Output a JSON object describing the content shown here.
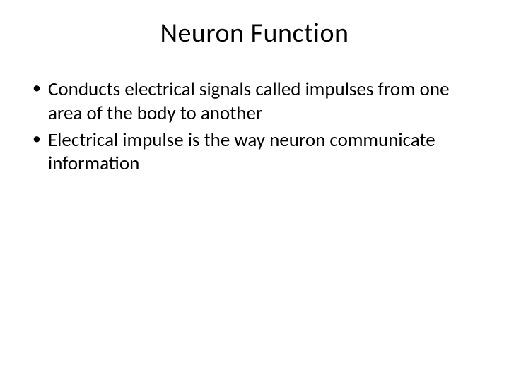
{
  "slide": {
    "title": "Neuron Function",
    "bullets": [
      "Conducts electrical signals called impulses from one area of the body to another",
      "Electrical impulse is the way neuron communicate information"
    ]
  },
  "style": {
    "background_color": "#ffffff",
    "text_color": "#000000",
    "title_fontsize": 38,
    "bullet_fontsize": 27,
    "font_family": "Calibri"
  }
}
